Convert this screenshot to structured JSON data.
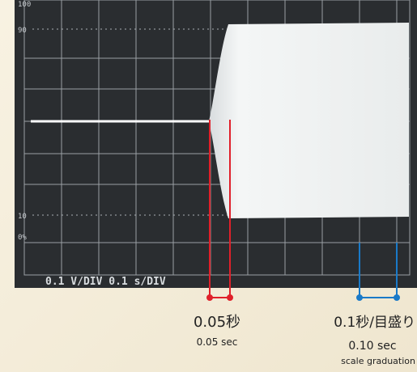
{
  "screen": {
    "scale_labels": [
      "100",
      "90",
      "10",
      "0%"
    ],
    "settings_text": "0.1 V/DIV 0.1 s/DIV"
  },
  "annotations": [
    {
      "label": "0.05秒",
      "sublabel": "0.05 sec"
    },
    {
      "label": "0.1秒/目盛り",
      "sublabel": "0.10 sec",
      "note": "scale graduation"
    }
  ]
}
